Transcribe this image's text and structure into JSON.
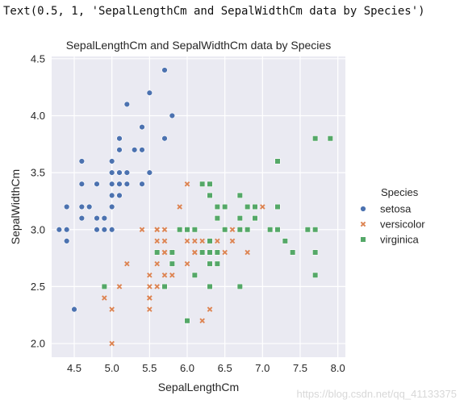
{
  "output_text": "Text(0.5, 1, 'SepalLengthCm and SepalWidthCm data by Species')",
  "watermark": "https://blog.csdn.net/qq_41133375",
  "chart_data": {
    "type": "scatter",
    "title": "SepalLengthCm and SepalWidthCm data by Species",
    "xlabel": "SepalLengthCm",
    "ylabel": "SepalWidthCm",
    "xlim": [
      4.2,
      8.1
    ],
    "ylim": [
      1.88,
      4.52
    ],
    "xticks": [
      "4.5",
      "5.0",
      "5.5",
      "6.0",
      "6.5",
      "7.0",
      "7.5",
      "8.0"
    ],
    "yticks": [
      "2.0",
      "2.5",
      "3.0",
      "3.5",
      "4.0",
      "4.5"
    ],
    "grid": true,
    "background": "#eaeaf2",
    "legend_title": "Species",
    "legend_position": "outside-right",
    "series": [
      {
        "name": "setosa",
        "marker": "circle",
        "color": "#4c72b0",
        "points": [
          [
            5.1,
            3.5
          ],
          [
            4.9,
            3.0
          ],
          [
            4.7,
            3.2
          ],
          [
            4.6,
            3.1
          ],
          [
            5.0,
            3.6
          ],
          [
            5.4,
            3.9
          ],
          [
            4.6,
            3.4
          ],
          [
            5.0,
            3.4
          ],
          [
            4.4,
            2.9
          ],
          [
            4.9,
            3.1
          ],
          [
            5.4,
            3.7
          ],
          [
            4.8,
            3.4
          ],
          [
            4.8,
            3.0
          ],
          [
            4.3,
            3.0
          ],
          [
            5.8,
            4.0
          ],
          [
            5.7,
            4.4
          ],
          [
            5.4,
            3.9
          ],
          [
            5.1,
            3.5
          ],
          [
            5.7,
            3.8
          ],
          [
            5.1,
            3.8
          ],
          [
            5.4,
            3.4
          ],
          [
            5.1,
            3.7
          ],
          [
            4.6,
            3.6
          ],
          [
            5.1,
            3.3
          ],
          [
            4.8,
            3.4
          ],
          [
            5.0,
            3.0
          ],
          [
            5.0,
            3.4
          ],
          [
            5.2,
            3.5
          ],
          [
            5.2,
            3.4
          ],
          [
            4.7,
            3.2
          ],
          [
            4.8,
            3.1
          ],
          [
            5.4,
            3.4
          ],
          [
            5.2,
            4.1
          ],
          [
            5.5,
            4.2
          ],
          [
            4.9,
            3.1
          ],
          [
            5.0,
            3.2
          ],
          [
            5.5,
            3.5
          ],
          [
            4.4,
            3.0
          ],
          [
            5.1,
            3.4
          ],
          [
            5.0,
            3.5
          ],
          [
            4.5,
            2.3
          ],
          [
            4.4,
            3.2
          ],
          [
            5.0,
            3.5
          ],
          [
            5.1,
            3.8
          ],
          [
            4.8,
            3.0
          ],
          [
            5.1,
            3.8
          ],
          [
            4.6,
            3.2
          ],
          [
            5.3,
            3.7
          ],
          [
            5.0,
            3.3
          ]
        ]
      },
      {
        "name": "versicolor",
        "marker": "x",
        "color": "#dd8452",
        "points": [
          [
            7.0,
            3.2
          ],
          [
            6.4,
            3.2
          ],
          [
            6.9,
            3.1
          ],
          [
            5.5,
            2.3
          ],
          [
            6.5,
            2.8
          ],
          [
            5.7,
            2.8
          ],
          [
            6.3,
            3.3
          ],
          [
            4.9,
            2.4
          ],
          [
            6.6,
            2.9
          ],
          [
            5.2,
            2.7
          ],
          [
            5.0,
            2.0
          ],
          [
            5.9,
            3.0
          ],
          [
            6.0,
            2.2
          ],
          [
            6.1,
            2.9
          ],
          [
            5.6,
            2.9
          ],
          [
            6.7,
            3.1
          ],
          [
            5.6,
            3.0
          ],
          [
            5.8,
            2.7
          ],
          [
            6.2,
            2.2
          ],
          [
            5.6,
            2.5
          ],
          [
            5.9,
            3.2
          ],
          [
            6.1,
            2.8
          ],
          [
            6.3,
            2.5
          ],
          [
            6.1,
            2.8
          ],
          [
            6.4,
            2.9
          ],
          [
            6.6,
            3.0
          ],
          [
            6.8,
            2.8
          ],
          [
            6.7,
            3.0
          ],
          [
            6.0,
            2.9
          ],
          [
            5.7,
            2.6
          ],
          [
            5.5,
            2.4
          ],
          [
            5.5,
            2.4
          ],
          [
            5.8,
            2.7
          ],
          [
            6.0,
            2.7
          ],
          [
            5.4,
            3.0
          ],
          [
            6.0,
            3.4
          ],
          [
            6.7,
            3.1
          ],
          [
            6.3,
            2.3
          ],
          [
            5.6,
            3.0
          ],
          [
            5.5,
            2.5
          ],
          [
            5.5,
            2.6
          ],
          [
            6.1,
            3.0
          ],
          [
            5.8,
            2.6
          ],
          [
            5.0,
            2.3
          ],
          [
            5.6,
            2.7
          ],
          [
            5.7,
            3.0
          ],
          [
            5.7,
            2.9
          ],
          [
            6.2,
            2.9
          ],
          [
            5.1,
            2.5
          ],
          [
            5.7,
            2.8
          ]
        ]
      },
      {
        "name": "virginica",
        "marker": "square",
        "color": "#55a868",
        "points": [
          [
            6.3,
            3.3
          ],
          [
            5.8,
            2.7
          ],
          [
            7.1,
            3.0
          ],
          [
            6.3,
            2.9
          ],
          [
            6.5,
            3.0
          ],
          [
            7.6,
            3.0
          ],
          [
            4.9,
            2.5
          ],
          [
            7.3,
            2.9
          ],
          [
            6.7,
            2.5
          ],
          [
            7.2,
            3.6
          ],
          [
            6.5,
            3.2
          ],
          [
            6.4,
            2.7
          ],
          [
            6.8,
            3.0
          ],
          [
            5.7,
            2.5
          ],
          [
            5.8,
            2.8
          ],
          [
            6.4,
            3.2
          ],
          [
            6.5,
            3.0
          ],
          [
            7.7,
            3.8
          ],
          [
            7.7,
            2.6
          ],
          [
            6.0,
            2.2
          ],
          [
            6.9,
            3.2
          ],
          [
            5.6,
            2.8
          ],
          [
            7.7,
            2.8
          ],
          [
            6.3,
            2.7
          ],
          [
            6.7,
            3.3
          ],
          [
            7.2,
            3.2
          ],
          [
            6.2,
            2.8
          ],
          [
            6.1,
            3.0
          ],
          [
            6.4,
            2.8
          ],
          [
            7.2,
            3.0
          ],
          [
            7.4,
            2.8
          ],
          [
            7.9,
            3.8
          ],
          [
            6.4,
            2.8
          ],
          [
            6.3,
            2.8
          ],
          [
            6.1,
            2.6
          ],
          [
            7.7,
            3.0
          ],
          [
            6.3,
            3.4
          ],
          [
            6.4,
            3.1
          ],
          [
            6.0,
            3.0
          ],
          [
            6.9,
            3.1
          ],
          [
            6.7,
            3.1
          ],
          [
            6.9,
            3.1
          ],
          [
            5.8,
            2.7
          ],
          [
            6.8,
            3.2
          ],
          [
            6.7,
            3.3
          ],
          [
            6.7,
            3.0
          ],
          [
            6.3,
            2.5
          ],
          [
            6.5,
            3.0
          ],
          [
            6.2,
            3.4
          ],
          [
            5.9,
            3.0
          ]
        ]
      }
    ]
  }
}
